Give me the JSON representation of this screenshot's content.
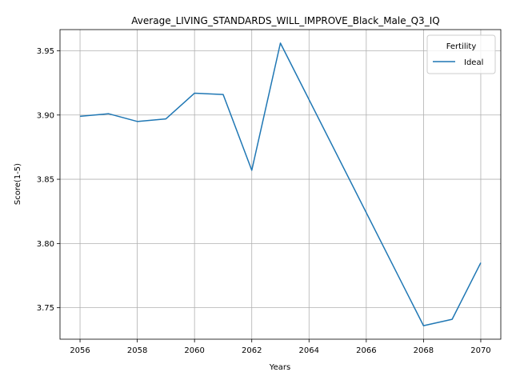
{
  "chart_data": {
    "type": "line",
    "title": "Average_LIVING_STANDARDS_WILL_IMPROVE_Black_Male_Q3_IQ",
    "xlabel": "Years",
    "ylabel": "Score(1-5)",
    "xlim": [
      2055.3,
      2070.7
    ],
    "ylim": [
      3.7255,
      3.9665
    ],
    "x_ticks": [
      2056,
      2058,
      2060,
      2062,
      2064,
      2066,
      2068,
      2070
    ],
    "y_ticks": [
      3.75,
      3.8,
      3.85,
      3.9,
      3.95
    ],
    "y_tick_labels": [
      "3.75",
      "3.80",
      "3.85",
      "3.90",
      "3.95"
    ],
    "grid": true,
    "legend": {
      "title": "Fertility",
      "placement": "top-right"
    },
    "series": [
      {
        "name": "Ideal",
        "color": "#1f77b4",
        "x": [
          2056,
          2057,
          2058,
          2059,
          2060,
          2061,
          2062,
          2063,
          2068,
          2069,
          2070
        ],
        "y": [
          3.899,
          3.901,
          3.895,
          3.897,
          3.917,
          3.916,
          3.857,
          3.956,
          3.736,
          3.741,
          3.785
        ]
      }
    ]
  }
}
